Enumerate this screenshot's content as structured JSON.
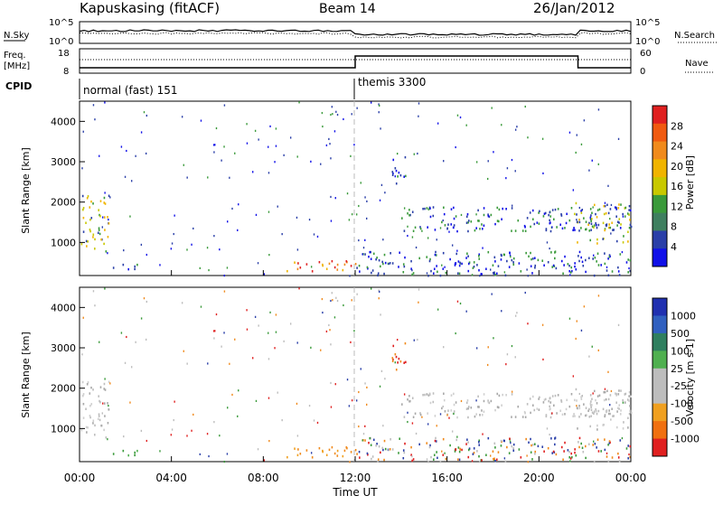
{
  "header": {
    "station": "Kapuskasing (fitACF)",
    "beam": "Beam 14",
    "date": "26/Jan/2012"
  },
  "noise_panel": {
    "left_label": "N.Sky",
    "right_label": "N.Search",
    "y_ticks": [
      "10^5",
      "10^0"
    ]
  },
  "freq_panel": {
    "left_label_line1": "Freq.",
    "left_label_line2": "[MHz]",
    "left_ticks": [
      "18",
      "8"
    ],
    "right_label": "Nave",
    "right_ticks": [
      "60",
      "0"
    ]
  },
  "cpid": {
    "label": "CPID",
    "segments": [
      {
        "name": "normal (fast) 151",
        "start_hour": 0
      },
      {
        "name": "themis 3300",
        "start_hour": 12
      }
    ]
  },
  "x_axis": {
    "label": "Time UT",
    "ticks": [
      "00:00",
      "04:00",
      "08:00",
      "12:00",
      "16:00",
      "20:00",
      "00:00"
    ]
  },
  "colors": {
    "scatter_blue": "#2a3fa8",
    "scatter_green": "#3a9a3a",
    "scatter_gray": "#bdbdbd",
    "scatter_orange": "#f08a1c",
    "scatter_red": "#e02020"
  },
  "chart_data": [
    {
      "type": "heatmap",
      "ylabel": "Slant Range [km]",
      "xlabel": "",
      "x_range_hours": [
        0,
        24
      ],
      "ylim": [
        180,
        4500
      ],
      "y_ticks": [
        "1000",
        "2000",
        "3000",
        "4000"
      ],
      "colorbar": {
        "label": "Power [dB]",
        "ticks": [
          "4",
          "8",
          "12",
          "16",
          "20",
          "24",
          "28"
        ],
        "colors": [
          "#1010e8",
          "#2a3fa8",
          "#3f7f5f",
          "#3a9a3a",
          "#c8c800",
          "#f0b400",
          "#f08a1c",
          "#f05a10",
          "#e02020"
        ]
      },
      "regions": [
        {
          "t0": 0.0,
          "t1": 1.3,
          "r0": 800,
          "r1": 2200,
          "level": "green-yellow"
        },
        {
          "t0": 1.2,
          "t1": 2.5,
          "r0": 300,
          "r1": 500,
          "level": "blue-green"
        },
        {
          "t0": 9.0,
          "t1": 12.0,
          "r0": 300,
          "r1": 600,
          "level": "red-orange"
        },
        {
          "t0": 12.0,
          "t1": 24.0,
          "r0": 200,
          "r1": 800,
          "level": "blue-green"
        },
        {
          "t0": 13.5,
          "t1": 14.2,
          "r0": 2400,
          "r1": 3200,
          "level": "blue"
        },
        {
          "t0": 14.0,
          "t1": 24.0,
          "r0": 1300,
          "r1": 1900,
          "level": "blue"
        },
        {
          "t0": 21.5,
          "t1": 24.0,
          "r0": 1000,
          "r1": 2000,
          "level": "green-yellow"
        }
      ]
    },
    {
      "type": "heatmap",
      "ylabel": "Slant Range [km]",
      "xlabel": "Time UT",
      "x_range_hours": [
        0,
        24
      ],
      "ylim": [
        180,
        4500
      ],
      "y_ticks": [
        "1000",
        "2000",
        "3000",
        "4000"
      ],
      "colorbar": {
        "label": "Velocity [m s-1]",
        "ticks": [
          "1000",
          "500",
          "100",
          "25",
          "-25",
          "-100",
          "-500",
          "-1000"
        ],
        "colors": [
          "#2030b0",
          "#3060c0",
          "#2f7f5f",
          "#50b050",
          "#bdbdbd",
          "#bdbdbd",
          "#f0a020",
          "#f07010",
          "#e02020"
        ]
      },
      "regions": [
        {
          "t0": 0.0,
          "t1": 1.3,
          "r0": 800,
          "r1": 2200,
          "level": "gray"
        },
        {
          "t0": 1.2,
          "t1": 2.5,
          "r0": 300,
          "r1": 500,
          "level": "green"
        },
        {
          "t0": 9.0,
          "t1": 12.0,
          "r0": 300,
          "r1": 600,
          "level": "orange"
        },
        {
          "t0": 12.0,
          "t1": 24.0,
          "r0": 200,
          "r1": 800,
          "level": "mixed"
        },
        {
          "t0": 13.5,
          "t1": 14.2,
          "r0": 2400,
          "r1": 3200,
          "level": "orange-red"
        },
        {
          "t0": 14.0,
          "t1": 24.0,
          "r0": 1300,
          "r1": 1900,
          "level": "gray"
        },
        {
          "t0": 21.5,
          "t1": 24.0,
          "r0": 1000,
          "r1": 2000,
          "level": "gray"
        }
      ]
    }
  ]
}
